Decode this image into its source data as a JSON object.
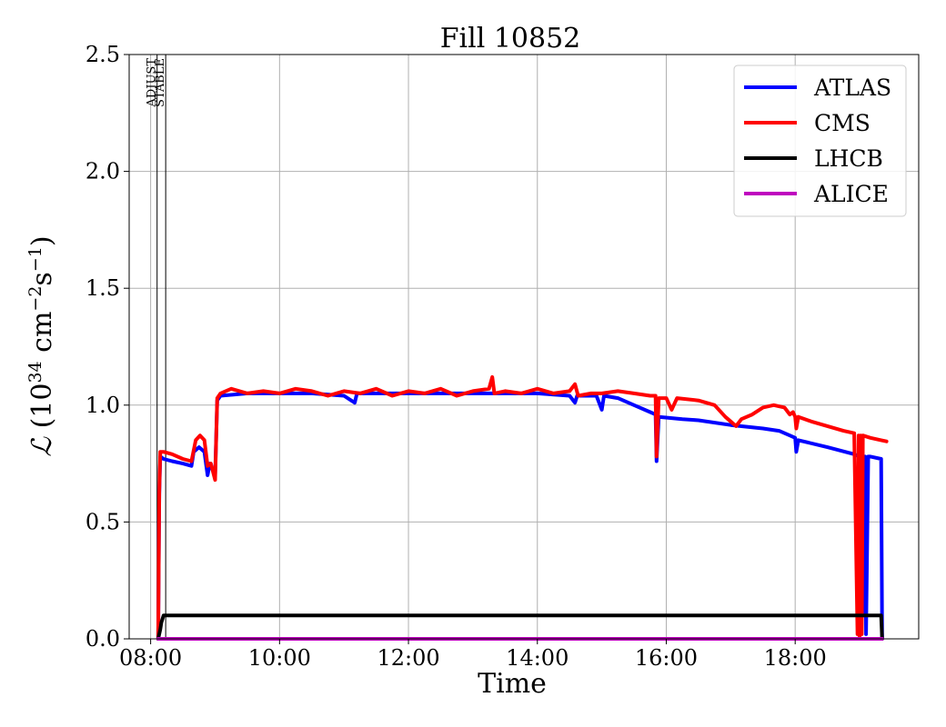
{
  "chart_data": {
    "type": "line",
    "title": "Fill 10852",
    "xlabel": "Time",
    "ylabel": "ℒ (10³⁴ cm⁻²s⁻¹)",
    "ylabel_parts": {
      "script_l": "ℒ",
      "open": " (10",
      "exp1": "34",
      "mid": " cm",
      "exp2": "−2",
      "s": "s",
      "exp3": "−1",
      "close": ")"
    },
    "xlim": [
      "07:40",
      "19:55"
    ],
    "ylim": [
      0,
      2.5
    ],
    "grid": true,
    "legend_position": "top-right",
    "x_ticks": [
      "08:00",
      "10:00",
      "12:00",
      "14:00",
      "16:00",
      "18:00"
    ],
    "y_ticks": [
      "0.0",
      "0.5",
      "1.0",
      "1.5",
      "2.0",
      "2.5"
    ],
    "mode_markers": [
      {
        "label": "ADJUST",
        "time": "08:06"
      },
      {
        "label": "STABLE",
        "time": "08:14"
      }
    ],
    "series": [
      {
        "name": "ATLAS",
        "color": "#0000ff",
        "points": [
          [
            "08:07",
            0.0
          ],
          [
            "08:08",
            0.62
          ],
          [
            "08:09",
            0.78
          ],
          [
            "08:12",
            0.77
          ],
          [
            "08:20",
            0.76
          ],
          [
            "08:30",
            0.75
          ],
          [
            "08:38",
            0.74
          ],
          [
            "08:40",
            0.8
          ],
          [
            "08:45",
            0.82
          ],
          [
            "08:50",
            0.8
          ],
          [
            "08:53",
            0.7
          ],
          [
            "08:55",
            0.75
          ],
          [
            "08:58",
            0.72
          ],
          [
            "09:00",
            0.7
          ],
          [
            "09:02",
            1.02
          ],
          [
            "09:05",
            1.04
          ],
          [
            "09:30",
            1.05
          ],
          [
            "10:00",
            1.05
          ],
          [
            "10:30",
            1.05
          ],
          [
            "11:00",
            1.04
          ],
          [
            "11:10",
            1.01
          ],
          [
            "11:12",
            1.05
          ],
          [
            "11:40",
            1.05
          ],
          [
            "12:00",
            1.05
          ],
          [
            "12:30",
            1.05
          ],
          [
            "13:00",
            1.05
          ],
          [
            "13:30",
            1.05
          ],
          [
            "14:00",
            1.05
          ],
          [
            "14:30",
            1.04
          ],
          [
            "14:35",
            1.01
          ],
          [
            "14:37",
            1.04
          ],
          [
            "14:55",
            1.04
          ],
          [
            "15:00",
            0.98
          ],
          [
            "15:02",
            1.04
          ],
          [
            "15:15",
            1.03
          ],
          [
            "15:30",
            1.0
          ],
          [
            "15:45",
            0.97
          ],
          [
            "15:50",
            0.96
          ],
          [
            "15:51",
            0.76
          ],
          [
            "15:53",
            0.95
          ],
          [
            "16:15",
            0.94
          ],
          [
            "16:30",
            0.935
          ],
          [
            "17:00",
            0.915
          ],
          [
            "17:30",
            0.9
          ],
          [
            "17:45",
            0.89
          ],
          [
            "17:55",
            0.87
          ],
          [
            "18:00",
            0.86
          ],
          [
            "18:01",
            0.8
          ],
          [
            "18:03",
            0.85
          ],
          [
            "18:30",
            0.82
          ],
          [
            "18:55",
            0.79
          ],
          [
            "19:00",
            0.78
          ],
          [
            "19:01",
            0.05
          ],
          [
            "19:02",
            0.78
          ],
          [
            "19:04",
            0.1
          ],
          [
            "19:05",
            0.78
          ],
          [
            "19:06",
            0.02
          ],
          [
            "19:08",
            0.78
          ],
          [
            "19:10",
            0.78
          ],
          [
            "19:20",
            0.77
          ],
          [
            "19:21",
            0.0
          ]
        ]
      },
      {
        "name": "CMS",
        "color": "#ff0000",
        "points": [
          [
            "08:07",
            0.0
          ],
          [
            "08:08",
            0.63
          ],
          [
            "08:09",
            0.8
          ],
          [
            "08:12",
            0.8
          ],
          [
            "08:20",
            0.79
          ],
          [
            "08:30",
            0.77
          ],
          [
            "08:38",
            0.76
          ],
          [
            "08:42",
            0.85
          ],
          [
            "08:46",
            0.87
          ],
          [
            "08:50",
            0.85
          ],
          [
            "08:53",
            0.74
          ],
          [
            "08:56",
            0.75
          ],
          [
            "09:00",
            0.68
          ],
          [
            "09:02",
            1.03
          ],
          [
            "09:05",
            1.05
          ],
          [
            "09:15",
            1.07
          ],
          [
            "09:30",
            1.05
          ],
          [
            "09:45",
            1.06
          ],
          [
            "10:00",
            1.05
          ],
          [
            "10:15",
            1.07
          ],
          [
            "10:30",
            1.06
          ],
          [
            "10:45",
            1.04
          ],
          [
            "11:00",
            1.06
          ],
          [
            "11:15",
            1.05
          ],
          [
            "11:30",
            1.07
          ],
          [
            "11:45",
            1.04
          ],
          [
            "12:00",
            1.06
          ],
          [
            "12:15",
            1.05
          ],
          [
            "12:30",
            1.07
          ],
          [
            "12:45",
            1.04
          ],
          [
            "13:00",
            1.06
          ],
          [
            "13:15",
            1.07
          ],
          [
            "13:18",
            1.12
          ],
          [
            "13:20",
            1.05
          ],
          [
            "13:30",
            1.06
          ],
          [
            "13:45",
            1.05
          ],
          [
            "14:00",
            1.07
          ],
          [
            "14:15",
            1.05
          ],
          [
            "14:30",
            1.06
          ],
          [
            "14:35",
            1.09
          ],
          [
            "14:38",
            1.04
          ],
          [
            "14:50",
            1.05
          ],
          [
            "15:00",
            1.05
          ],
          [
            "15:15",
            1.06
          ],
          [
            "15:30",
            1.05
          ],
          [
            "15:45",
            1.04
          ],
          [
            "15:50",
            1.04
          ],
          [
            "15:51",
            0.78
          ],
          [
            "15:53",
            1.03
          ],
          [
            "16:00",
            1.03
          ],
          [
            "16:05",
            0.98
          ],
          [
            "16:10",
            1.03
          ],
          [
            "16:30",
            1.02
          ],
          [
            "16:45",
            1.0
          ],
          [
            "16:55",
            0.95
          ],
          [
            "17:00",
            0.93
          ],
          [
            "17:05",
            0.91
          ],
          [
            "17:10",
            0.94
          ],
          [
            "17:20",
            0.96
          ],
          [
            "17:30",
            0.99
          ],
          [
            "17:40",
            1.0
          ],
          [
            "17:50",
            0.99
          ],
          [
            "17:55",
            0.96
          ],
          [
            "17:58",
            0.97
          ],
          [
            "18:00",
            0.95
          ],
          [
            "18:01",
            0.9
          ],
          [
            "18:03",
            0.95
          ],
          [
            "18:15",
            0.93
          ],
          [
            "18:30",
            0.91
          ],
          [
            "18:45",
            0.89
          ],
          [
            "18:55",
            0.88
          ],
          [
            "18:58",
            0.02
          ],
          [
            "18:59",
            0.87
          ],
          [
            "19:00",
            0.0
          ],
          [
            "19:01",
            0.87
          ],
          [
            "19:02",
            0.02
          ],
          [
            "19:03",
            0.87
          ],
          [
            "19:10",
            0.86
          ],
          [
            "19:20",
            0.85
          ],
          [
            "19:25",
            0.845
          ]
        ]
      },
      {
        "name": "LHCB",
        "color": "#000000",
        "points": [
          [
            "08:07",
            0.0
          ],
          [
            "08:09",
            0.04
          ],
          [
            "08:10",
            0.07
          ],
          [
            "08:12",
            0.1
          ],
          [
            "08:30",
            0.1
          ],
          [
            "09:00",
            0.1
          ],
          [
            "10:00",
            0.1
          ],
          [
            "11:00",
            0.1
          ],
          [
            "12:00",
            0.1
          ],
          [
            "13:00",
            0.1
          ],
          [
            "14:00",
            0.1
          ],
          [
            "15:00",
            0.1
          ],
          [
            "16:00",
            0.1
          ],
          [
            "17:00",
            0.1
          ],
          [
            "18:00",
            0.1
          ],
          [
            "19:00",
            0.1
          ],
          [
            "19:20",
            0.1
          ],
          [
            "19:21",
            0.0
          ]
        ]
      },
      {
        "name": "ALICE",
        "color": "#bf00bf",
        "points": [
          [
            "08:07",
            0.0
          ],
          [
            "10:00",
            0.0
          ],
          [
            "12:00",
            0.0
          ],
          [
            "14:00",
            0.0
          ],
          [
            "16:00",
            0.0
          ],
          [
            "18:00",
            0.0
          ],
          [
            "19:21",
            0.0
          ]
        ]
      }
    ]
  }
}
